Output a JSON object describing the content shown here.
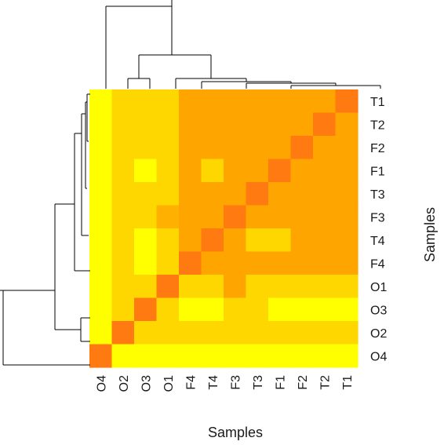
{
  "chart_data": {
    "type": "heatmap",
    "title": "",
    "xlabel": "Samples",
    "ylabel": "Samples",
    "x_labels": [
      "O4",
      "O2",
      "O3",
      "O1",
      "F4",
      "T4",
      "F3",
      "T3",
      "F1",
      "F2",
      "T2",
      "T1"
    ],
    "y_labels": [
      "T1",
      "T2",
      "F2",
      "F1",
      "T3",
      "F3",
      "T4",
      "F4",
      "O1",
      "O3",
      "O2",
      "O4"
    ],
    "color_levels": [
      "#FFFF00",
      "#FFD700",
      "#FFB000",
      "#FFA500",
      "#FF7A10"
    ],
    "values": [
      [
        0,
        1,
        1,
        1,
        3,
        3,
        3,
        3,
        3,
        3,
        3,
        4
      ],
      [
        0,
        1,
        1,
        1,
        3,
        3,
        3,
        3,
        3,
        3,
        4,
        3
      ],
      [
        0,
        1,
        1,
        1,
        3,
        3,
        3,
        3,
        3,
        4,
        3,
        3
      ],
      [
        0,
        1,
        0,
        1,
        3,
        1,
        3,
        3,
        4,
        3,
        3,
        3
      ],
      [
        0,
        1,
        1,
        1,
        3,
        3,
        3,
        4,
        3,
        3,
        3,
        3
      ],
      [
        0,
        1,
        1,
        2,
        3,
        3,
        4,
        3,
        3,
        3,
        3,
        3
      ],
      [
        0,
        1,
        0,
        1,
        3,
        4,
        3,
        1,
        1,
        3,
        3,
        3
      ],
      [
        0,
        1,
        0,
        1,
        4,
        3,
        3,
        3,
        3,
        3,
        3,
        3
      ],
      [
        0,
        1,
        1,
        4,
        1,
        1,
        3,
        1,
        1,
        1,
        1,
        1
      ],
      [
        0,
        1,
        4,
        1,
        0,
        0,
        1,
        1,
        0,
        0,
        0,
        0
      ],
      [
        0,
        4,
        1,
        1,
        1,
        1,
        1,
        1,
        1,
        1,
        1,
        1
      ],
      [
        4,
        0,
        0,
        0,
        0,
        0,
        0,
        0,
        0,
        0,
        0,
        0
      ]
    ],
    "dendrogram": "on top and left",
    "legend": "none"
  }
}
